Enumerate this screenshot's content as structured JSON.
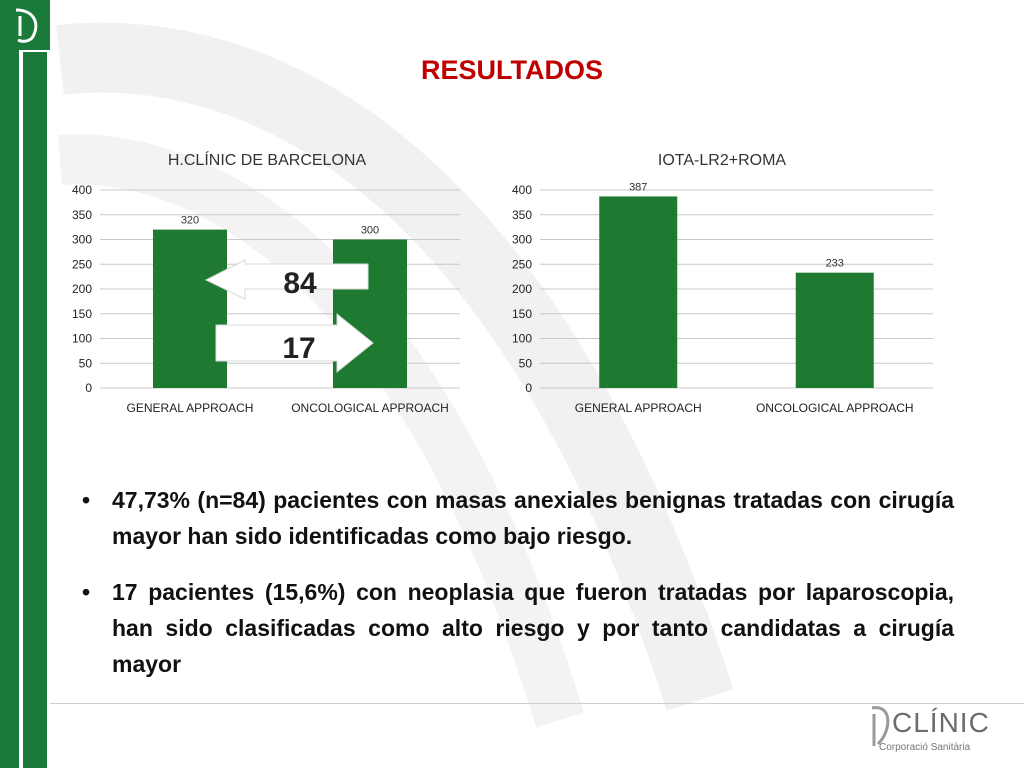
{
  "slide": {
    "title": "RESULTADOS"
  },
  "colors": {
    "bar": "#1e7a30",
    "title": "#c00000",
    "band": "#1a7a3a"
  },
  "chart_data": [
    {
      "type": "bar",
      "title": "H.CLÍNIC DE BARCELONA",
      "categories": [
        "GENERAL APPROACH",
        "ONCOLOGICAL APPROACH"
      ],
      "values": [
        320,
        300
      ],
      "value_labels": [
        "320",
        "300"
      ],
      "yticks": [
        "0",
        "50",
        "100",
        "150",
        "200",
        "250",
        "300",
        "350",
        "400"
      ],
      "ylim": [
        0,
        400
      ],
      "grid": true,
      "annotations": [
        {
          "label": "84",
          "direction": "left"
        },
        {
          "label": "17",
          "direction": "right"
        }
      ]
    },
    {
      "type": "bar",
      "title": "IOTA-LR2+ROMA",
      "categories": [
        "GENERAL APPROACH",
        "ONCOLOGICAL APPROACH"
      ],
      "values": [
        387,
        233
      ],
      "value_labels": [
        "387",
        "233"
      ],
      "yticks": [
        "0",
        "50",
        "100",
        "150",
        "200",
        "250",
        "300",
        "350",
        "400"
      ],
      "ylim": [
        0,
        400
      ],
      "grid": true
    }
  ],
  "bullets": [
    "47,73% (n=84) pacientes con masas anexiales benignas tratadas con cirugía mayor han sido identificadas como bajo riesgo.",
    "17 pacientes (15,6%)  con neoplasia que fueron tratadas por laparoscopia, han sido clasificadas como alto riesgo y  por tanto candidatas a cirugía mayor"
  ],
  "footer": {
    "logo_name": "CLÍNIC",
    "logo_subtitle": "Corporació Sanitària"
  }
}
